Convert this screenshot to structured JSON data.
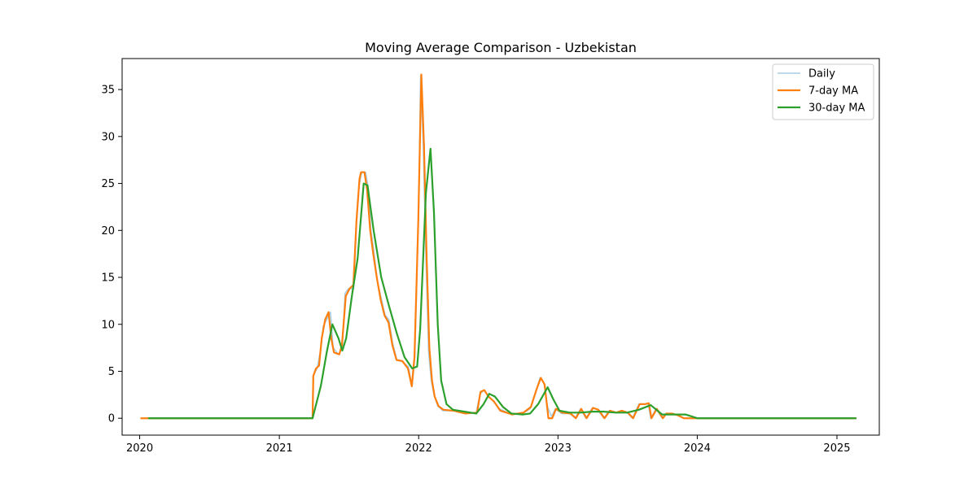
{
  "chart_data": {
    "type": "line",
    "title": "Moving Average Comparison - Uzbekistan",
    "xlabel": "",
    "ylabel": "",
    "xlim": [
      "2019-11-16",
      "2025-04-22"
    ],
    "ylim": [
      -1.8,
      38.3
    ],
    "x_ticks": [
      "2020",
      "2021",
      "2022",
      "2023",
      "2024",
      "2025"
    ],
    "y_ticks": [
      0,
      5,
      10,
      15,
      20,
      25,
      30,
      35
    ],
    "grid": false,
    "legend_position": "top-right",
    "series": [
      {
        "name": "Daily",
        "color": "#a6cee3",
        "points": [
          [
            "2020-01-03",
            0
          ],
          [
            "2021-03-29",
            0
          ],
          [
            "2021-03-30",
            4.5
          ],
          [
            "2021-04-10",
            5.3
          ],
          [
            "2021-04-20",
            7.5
          ],
          [
            "2021-04-26",
            9.8
          ],
          [
            "2021-05-05",
            10.5
          ],
          [
            "2021-05-15",
            11.3
          ],
          [
            "2021-05-22",
            7.5
          ],
          [
            "2021-06-05",
            6.8
          ],
          [
            "2021-06-15",
            7.5
          ],
          [
            "2021-06-22",
            13.3
          ],
          [
            "2021-07-01",
            13.8
          ],
          [
            "2021-07-15",
            13.8
          ],
          [
            "2021-07-22",
            20.5
          ],
          [
            "2021-07-29",
            24.8
          ],
          [
            "2021-08-05",
            26.2
          ],
          [
            "2021-08-15",
            26.2
          ],
          [
            "2021-08-22",
            24.5
          ],
          [
            "2021-08-29",
            20.0
          ],
          [
            "2021-09-05",
            18.0
          ],
          [
            "2021-09-15",
            14.5
          ],
          [
            "2021-09-25",
            12.8
          ],
          [
            "2021-10-05",
            11.0
          ],
          [
            "2021-10-15",
            10.5
          ],
          [
            "2021-10-25",
            8.0
          ],
          [
            "2021-11-05",
            6.2
          ],
          [
            "2021-11-20",
            6.0
          ],
          [
            "2021-12-05",
            5.5
          ],
          [
            "2021-12-15",
            3.4
          ],
          [
            "2021-12-22",
            6.5
          ],
          [
            "2022-01-01",
            22.0
          ],
          [
            "2022-01-06",
            36.5
          ],
          [
            "2022-01-13",
            29.0
          ],
          [
            "2022-01-20",
            17.0
          ],
          [
            "2022-01-27",
            7.0
          ],
          [
            "2022-02-03",
            4.0
          ],
          [
            "2022-02-10",
            2.5
          ],
          [
            "2022-02-20",
            1.3
          ],
          [
            "2022-03-05",
            0.8
          ],
          [
            "2022-04-01",
            0.8
          ],
          [
            "2022-05-01",
            0.5
          ],
          [
            "2022-06-01",
            0.6
          ],
          [
            "2022-06-10",
            2.5
          ],
          [
            "2022-06-20",
            3.0
          ],
          [
            "2022-07-01",
            2.5
          ],
          [
            "2022-07-15",
            1.8
          ],
          [
            "2022-08-01",
            1.0
          ],
          [
            "2022-09-01",
            0.4
          ],
          [
            "2022-10-01",
            0.5
          ],
          [
            "2022-10-20",
            1.0
          ],
          [
            "2022-11-05",
            3.0
          ],
          [
            "2022-11-15",
            4.3
          ],
          [
            "2022-11-25",
            3.8
          ],
          [
            "2022-12-05",
            1.2
          ],
          [
            "2022-12-15",
            0.2
          ],
          [
            "2022-12-25",
            1.0
          ],
          [
            "2023-01-10",
            0.5
          ],
          [
            "2023-02-01",
            0.5
          ],
          [
            "2023-02-15",
            0.0
          ],
          [
            "2023-03-01",
            1.0
          ],
          [
            "2023-03-15",
            0.0
          ],
          [
            "2023-04-01",
            1.1
          ],
          [
            "2023-04-15",
            0.9
          ],
          [
            "2023-05-01",
            0.0
          ],
          [
            "2023-05-15",
            0.8
          ],
          [
            "2023-06-01",
            0.6
          ],
          [
            "2023-06-15",
            0.8
          ],
          [
            "2023-07-01",
            0.6
          ],
          [
            "2023-07-15",
            0.0
          ],
          [
            "2023-08-01",
            1.5
          ],
          [
            "2023-08-15",
            1.5
          ],
          [
            "2023-08-25",
            1.6
          ],
          [
            "2023-09-01",
            0.0
          ],
          [
            "2023-09-15",
            1.0
          ],
          [
            "2023-10-01",
            0.0
          ],
          [
            "2023-10-10",
            0.5
          ],
          [
            "2023-10-25",
            0.5
          ],
          [
            "2023-11-10",
            0.3
          ],
          [
            "2023-11-25",
            0.0
          ],
          [
            "2024-01-01",
            0
          ],
          [
            "2025-02-21",
            0
          ]
        ]
      },
      {
        "name": "7-day MA",
        "color": "#ff7f0e",
        "points": [
          [
            "2020-01-03",
            0
          ],
          [
            "2021-03-29",
            0
          ],
          [
            "2021-03-31",
            4.5
          ],
          [
            "2021-04-07",
            5.3
          ],
          [
            "2021-04-15",
            5.6
          ],
          [
            "2021-04-22",
            8.5
          ],
          [
            "2021-05-01",
            10.5
          ],
          [
            "2021-05-10",
            11.3
          ],
          [
            "2021-05-17",
            8.5
          ],
          [
            "2021-05-24",
            7.0
          ],
          [
            "2021-06-07",
            6.8
          ],
          [
            "2021-06-14",
            7.8
          ],
          [
            "2021-06-24",
            13.0
          ],
          [
            "2021-07-04",
            13.8
          ],
          [
            "2021-07-14",
            14.2
          ],
          [
            "2021-07-22",
            21.0
          ],
          [
            "2021-07-30",
            25.5
          ],
          [
            "2021-08-03",
            26.2
          ],
          [
            "2021-08-12",
            26.2
          ],
          [
            "2021-08-19",
            24.3
          ],
          [
            "2021-08-27",
            20.0
          ],
          [
            "2021-09-04",
            17.5
          ],
          [
            "2021-09-14",
            14.8
          ],
          [
            "2021-09-24",
            12.5
          ],
          [
            "2021-10-04",
            10.9
          ],
          [
            "2021-10-14",
            10.2
          ],
          [
            "2021-10-24",
            7.8
          ],
          [
            "2021-11-04",
            6.2
          ],
          [
            "2021-11-19",
            6.1
          ],
          [
            "2021-12-04",
            5.3
          ],
          [
            "2021-12-14",
            3.4
          ],
          [
            "2021-12-21",
            6.5
          ],
          [
            "2021-12-31",
            21.0
          ],
          [
            "2022-01-08",
            36.6
          ],
          [
            "2022-01-15",
            29.0
          ],
          [
            "2022-01-22",
            17.0
          ],
          [
            "2022-01-29",
            7.5
          ],
          [
            "2022-02-05",
            4.0
          ],
          [
            "2022-02-12",
            2.3
          ],
          [
            "2022-02-22",
            1.3
          ],
          [
            "2022-03-07",
            0.9
          ],
          [
            "2022-04-03",
            0.8
          ],
          [
            "2022-05-03",
            0.5
          ],
          [
            "2022-06-03",
            0.6
          ],
          [
            "2022-06-12",
            2.8
          ],
          [
            "2022-06-22",
            3.0
          ],
          [
            "2022-07-03",
            2.3
          ],
          [
            "2022-07-17",
            1.8
          ],
          [
            "2022-08-03",
            0.8
          ],
          [
            "2022-09-03",
            0.4
          ],
          [
            "2022-10-03",
            0.6
          ],
          [
            "2022-10-22",
            1.2
          ],
          [
            "2022-11-07",
            3.2
          ],
          [
            "2022-11-17",
            4.3
          ],
          [
            "2022-11-27",
            3.6
          ],
          [
            "2022-12-07",
            0.0
          ],
          [
            "2022-12-17",
            0.0
          ],
          [
            "2022-12-27",
            1.0
          ],
          [
            "2023-01-12",
            0.6
          ],
          [
            "2023-02-03",
            0.5
          ],
          [
            "2023-02-17",
            0.0
          ],
          [
            "2023-03-03",
            1.0
          ],
          [
            "2023-03-17",
            0.0
          ],
          [
            "2023-04-03",
            1.1
          ],
          [
            "2023-04-17",
            0.9
          ],
          [
            "2023-05-03",
            0.0
          ],
          [
            "2023-05-17",
            0.8
          ],
          [
            "2023-06-03",
            0.6
          ],
          [
            "2023-06-17",
            0.8
          ],
          [
            "2023-07-03",
            0.6
          ],
          [
            "2023-07-17",
            0.0
          ],
          [
            "2023-08-03",
            1.5
          ],
          [
            "2023-08-17",
            1.5
          ],
          [
            "2023-08-27",
            1.6
          ],
          [
            "2023-09-03",
            0.0
          ],
          [
            "2023-09-17",
            1.0
          ],
          [
            "2023-10-03",
            0.0
          ],
          [
            "2023-10-12",
            0.5
          ],
          [
            "2023-10-27",
            0.5
          ],
          [
            "2023-11-12",
            0.3
          ],
          [
            "2023-11-27",
            0.0
          ],
          [
            "2024-01-03",
            0
          ],
          [
            "2025-02-21",
            0
          ]
        ]
      },
      {
        "name": "30-day MA",
        "color": "#2ca02c",
        "points": [
          [
            "2020-01-23",
            0
          ],
          [
            "2021-03-29",
            0
          ],
          [
            "2021-04-20",
            3.5
          ],
          [
            "2021-05-05",
            7.0
          ],
          [
            "2021-05-20",
            10.0
          ],
          [
            "2021-06-05",
            8.5
          ],
          [
            "2021-06-15",
            7.2
          ],
          [
            "2021-06-25",
            8.5
          ],
          [
            "2021-07-10",
            13.0
          ],
          [
            "2021-07-25",
            17.0
          ],
          [
            "2021-08-10",
            25.0
          ],
          [
            "2021-08-20",
            24.8
          ],
          [
            "2021-09-05",
            20.0
          ],
          [
            "2021-09-25",
            15.0
          ],
          [
            "2021-10-15",
            12.0
          ],
          [
            "2021-11-05",
            9.0
          ],
          [
            "2021-11-25",
            6.5
          ],
          [
            "2021-12-15",
            5.3
          ],
          [
            "2021-12-28",
            5.5
          ],
          [
            "2022-01-05",
            9.5
          ],
          [
            "2022-01-20",
            24.0
          ],
          [
            "2022-02-01",
            28.7
          ],
          [
            "2022-02-10",
            22.0
          ],
          [
            "2022-02-20",
            10.0
          ],
          [
            "2022-03-01",
            4.0
          ],
          [
            "2022-03-15",
            1.5
          ],
          [
            "2022-04-01",
            0.9
          ],
          [
            "2022-05-01",
            0.7
          ],
          [
            "2022-06-01",
            0.5
          ],
          [
            "2022-06-20",
            1.5
          ],
          [
            "2022-07-05",
            2.6
          ],
          [
            "2022-07-20",
            2.3
          ],
          [
            "2022-08-10",
            1.2
          ],
          [
            "2022-09-01",
            0.5
          ],
          [
            "2022-10-01",
            0.4
          ],
          [
            "2022-10-20",
            0.5
          ],
          [
            "2022-11-10",
            1.5
          ],
          [
            "2022-12-05",
            3.3
          ],
          [
            "2022-12-20",
            2.0
          ],
          [
            "2023-01-05",
            0.8
          ],
          [
            "2023-02-01",
            0.6
          ],
          [
            "2023-03-01",
            0.6
          ],
          [
            "2023-04-01",
            0.7
          ],
          [
            "2023-05-01",
            0.7
          ],
          [
            "2023-06-01",
            0.6
          ],
          [
            "2023-07-01",
            0.6
          ],
          [
            "2023-08-01",
            0.9
          ],
          [
            "2023-09-01",
            1.4
          ],
          [
            "2023-10-01",
            0.4
          ],
          [
            "2023-11-01",
            0.4
          ],
          [
            "2023-12-01",
            0.4
          ],
          [
            "2024-01-01",
            0.0
          ],
          [
            "2025-02-21",
            0
          ]
        ]
      }
    ]
  }
}
